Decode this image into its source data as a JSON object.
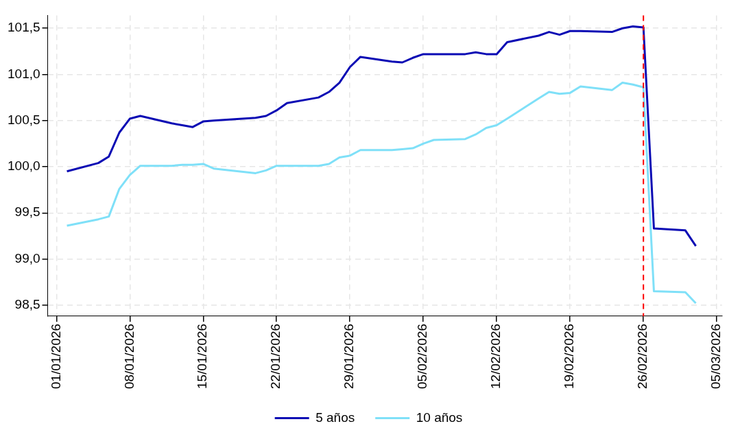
{
  "chart_data": {
    "type": "line",
    "x": [
      "2026-01-02",
      "2026-01-05",
      "2026-01-06",
      "2026-01-07",
      "2026-01-08",
      "2026-01-09",
      "2026-01-12",
      "2026-01-13",
      "2026-01-14",
      "2026-01-15",
      "2026-01-16",
      "2026-01-20",
      "2026-01-21",
      "2026-01-22",
      "2026-01-23",
      "2026-01-26",
      "2026-01-27",
      "2026-01-28",
      "2026-01-29",
      "2026-01-30",
      "2026-02-02",
      "2026-02-03",
      "2026-02-04",
      "2026-02-05",
      "2026-02-06",
      "2026-02-09",
      "2026-02-10",
      "2026-02-11",
      "2026-02-12",
      "2026-02-13",
      "2026-02-16",
      "2026-02-17",
      "2026-02-18",
      "2026-02-19",
      "2026-02-20",
      "2026-02-23",
      "2026-02-24",
      "2026-02-25",
      "2026-02-26",
      "2026-02-27",
      "2026-03-02",
      "2026-03-03"
    ],
    "series": [
      {
        "name": "5 años",
        "color": "#0a0ab4",
        "values": [
          99.95,
          100.04,
          100.11,
          100.37,
          100.52,
          100.55,
          100.47,
          100.45,
          100.43,
          100.49,
          100.5,
          100.53,
          100.55,
          100.61,
          100.69,
          100.75,
          100.81,
          100.91,
          101.08,
          101.19,
          101.14,
          101.13,
          101.18,
          101.22,
          101.22,
          101.22,
          101.24,
          101.22,
          101.22,
          101.35,
          101.42,
          101.46,
          101.43,
          101.47,
          101.47,
          101.46,
          101.5,
          101.52,
          101.51,
          99.33,
          99.31,
          99.14
        ]
      },
      {
        "name": "10 años",
        "color": "#7fe0f8",
        "values": [
          99.36,
          99.43,
          99.46,
          99.76,
          99.91,
          100.01,
          100.01,
          100.02,
          100.02,
          100.03,
          99.98,
          99.93,
          99.96,
          100.01,
          100.01,
          100.01,
          100.03,
          100.1,
          100.12,
          100.18,
          100.18,
          100.19,
          100.2,
          100.25,
          100.29,
          100.3,
          100.35,
          100.42,
          100.45,
          100.52,
          100.74,
          100.81,
          100.79,
          100.8,
          100.87,
          100.83,
          100.91,
          100.89,
          100.86,
          98.65,
          98.64,
          98.52
        ]
      }
    ],
    "xlim": [
      "2025-12-31T04:00",
      "2026-03-05T12:00"
    ],
    "xticks": [
      {
        "value": "2026-01-01",
        "label": "01/01/2026"
      },
      {
        "value": "2026-01-08",
        "label": "08/01/2026"
      },
      {
        "value": "2026-01-15",
        "label": "15/01/2026"
      },
      {
        "value": "2026-01-22",
        "label": "22/01/2026"
      },
      {
        "value": "2026-01-29",
        "label": "29/01/2026"
      },
      {
        "value": "2026-02-05",
        "label": "05/02/2026"
      },
      {
        "value": "2026-02-12",
        "label": "12/02/2026"
      },
      {
        "value": "2026-02-19",
        "label": "19/02/2026"
      },
      {
        "value": "2026-02-26",
        "label": "26/02/2026"
      },
      {
        "value": "2026-03-05",
        "label": "05/03/2026"
      }
    ],
    "ylim": [
      98.38,
      101.64
    ],
    "yticks": [
      {
        "value": 98.5,
        "label": "98,5"
      },
      {
        "value": 99,
        "label": "99,0"
      },
      {
        "value": 99.5,
        "label": "99,5"
      },
      {
        "value": 100,
        "label": "100,0"
      },
      {
        "value": 100.5,
        "label": "100,5"
      },
      {
        "value": 101,
        "label": "101,0"
      },
      {
        "value": 101.5,
        "label": "101,5"
      }
    ],
    "ref_lines": [
      {
        "axis": "x",
        "value": "2026-02-26",
        "color": "#ff0000",
        "line_style": "dashed"
      }
    ],
    "grid": true,
    "legend": "bottom",
    "marker": "none",
    "line_style": "solid"
  }
}
